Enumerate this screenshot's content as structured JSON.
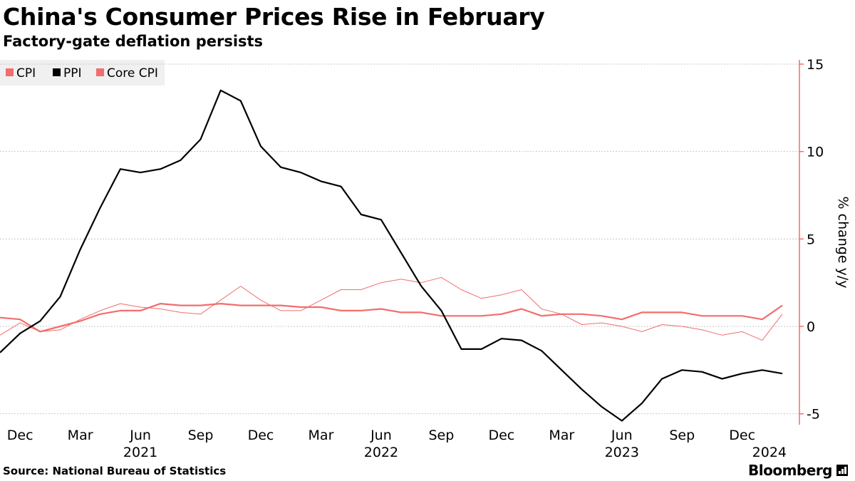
{
  "header": {
    "title": "China's Consumer Prices Rise in February",
    "subtitle": "Factory-gate deflation persists"
  },
  "footer": {
    "source": "Source: National Bureau of Statistics",
    "brand": "Bloomberg"
  },
  "chart_data": {
    "type": "line",
    "title": "China's Consumer Prices Rise in February",
    "subtitle": "Factory-gate deflation persists",
    "ylabel": "% change y/y",
    "xlabel": "",
    "ylim": [
      -6.5,
      15
    ],
    "y_ticks": [
      15,
      10,
      5,
      0,
      -5
    ],
    "y_tick_labels": [
      "15",
      "10",
      "5",
      "0",
      "-5"
    ],
    "y_axis_side": "right",
    "grid": "horizontal dotted",
    "legend_position": "top-left",
    "x_start": "2020-11",
    "x_end": "2024-02",
    "x_tick_months": [
      {
        "label": "Dec",
        "month": "2020-12"
      },
      {
        "label": "Mar",
        "month": "2021-03"
      },
      {
        "label": "Jun",
        "month": "2021-06"
      },
      {
        "label": "Sep",
        "month": "2021-09"
      },
      {
        "label": "Dec",
        "month": "2021-12"
      },
      {
        "label": "Mar",
        "month": "2022-03"
      },
      {
        "label": "Jun",
        "month": "2022-06"
      },
      {
        "label": "Sep",
        "month": "2022-09"
      },
      {
        "label": "Dec",
        "month": "2022-12"
      },
      {
        "label": "Mar",
        "month": "2023-03"
      },
      {
        "label": "Jun",
        "month": "2023-06"
      },
      {
        "label": "Sep",
        "month": "2023-09"
      },
      {
        "label": "Dec",
        "month": "2023-12"
      }
    ],
    "x_year_labels": [
      {
        "label": "2021",
        "month": "2021-06"
      },
      {
        "label": "2022",
        "month": "2022-06"
      },
      {
        "label": "2023",
        "month": "2023-06"
      },
      {
        "label": "2024",
        "month": "2024-02"
      }
    ],
    "x": [
      "2020-11",
      "2020-12",
      "2021-01",
      "2021-02",
      "2021-03",
      "2021-04",
      "2021-05",
      "2021-06",
      "2021-07",
      "2021-08",
      "2021-09",
      "2021-10",
      "2021-11",
      "2021-12",
      "2022-01",
      "2022-02",
      "2022-03",
      "2022-04",
      "2022-05",
      "2022-06",
      "2022-07",
      "2022-08",
      "2022-09",
      "2022-10",
      "2022-11",
      "2022-12",
      "2023-01",
      "2023-02",
      "2023-03",
      "2023-04",
      "2023-05",
      "2023-06",
      "2023-07",
      "2023-08",
      "2023-09",
      "2023-10",
      "2023-11",
      "2023-12",
      "2024-01",
      "2024-02"
    ],
    "series": [
      {
        "name": "CPI",
        "color": "#f26d6d",
        "style": "thin",
        "values": [
          -0.5,
          0.2,
          -0.3,
          -0.2,
          0.4,
          0.9,
          1.3,
          1.1,
          1.0,
          0.8,
          0.7,
          1.5,
          2.3,
          1.5,
          0.9,
          0.9,
          1.5,
          2.1,
          2.1,
          2.5,
          2.7,
          2.5,
          2.8,
          2.1,
          1.6,
          1.8,
          2.1,
          1.0,
          0.7,
          0.1,
          0.2,
          0.0,
          -0.3,
          0.1,
          0.0,
          -0.2,
          -0.5,
          -0.3,
          -0.8,
          0.7
        ]
      },
      {
        "name": "PPI",
        "color": "#000000",
        "style": "thick",
        "values": [
          -1.5,
          -0.4,
          0.3,
          1.7,
          4.4,
          6.8,
          9.0,
          8.8,
          9.0,
          9.5,
          10.7,
          13.5,
          12.9,
          10.3,
          9.1,
          8.8,
          8.3,
          8.0,
          6.4,
          6.1,
          4.2,
          2.3,
          0.9,
          -1.3,
          -1.3,
          -0.7,
          -0.8,
          -1.4,
          -2.5,
          -3.6,
          -4.6,
          -5.4,
          -4.4,
          -3.0,
          -2.5,
          -2.6,
          -3.0,
          -2.7,
          -2.5,
          -2.7
        ]
      },
      {
        "name": "Core CPI",
        "color": "#f26d6d",
        "style": "thick",
        "values": [
          0.5,
          0.4,
          -0.3,
          0.0,
          0.3,
          0.7,
          0.9,
          0.9,
          1.3,
          1.2,
          1.2,
          1.3,
          1.2,
          1.2,
          1.2,
          1.1,
          1.1,
          0.9,
          0.9,
          1.0,
          0.8,
          0.8,
          0.6,
          0.6,
          0.6,
          0.7,
          1.0,
          0.6,
          0.7,
          0.7,
          0.6,
          0.4,
          0.8,
          0.8,
          0.8,
          0.6,
          0.6,
          0.6,
          0.4,
          1.2
        ]
      }
    ]
  }
}
